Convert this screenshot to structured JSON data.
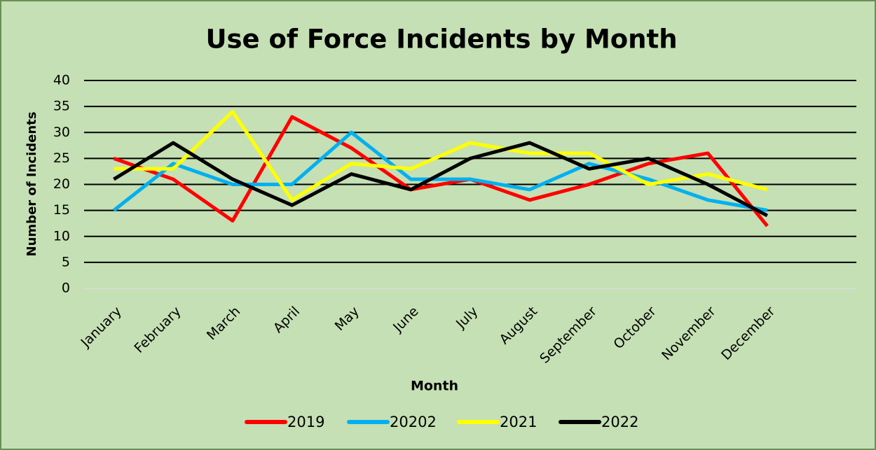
{
  "chart_data": {
    "type": "line",
    "title": "Use of Force Incidents by Month",
    "x_label": "Month",
    "y_label": "Number of Incidents",
    "categories": [
      "January",
      "February",
      "March",
      "April",
      "May",
      "June",
      "July",
      "August",
      "September",
      "October",
      "November",
      "December",
      null
    ],
    "series": [
      {
        "name": "2019",
        "color": "#ff0000",
        "values": [
          25,
          21,
          13,
          33,
          27,
          19,
          21,
          17,
          20,
          24,
          26,
          12,
          null
        ]
      },
      {
        "name": "20202",
        "color": "#00b0f0",
        "values": [
          15,
          24,
          20,
          20,
          30,
          21,
          21,
          19,
          24,
          21,
          17,
          15,
          null
        ]
      },
      {
        "name": "2021",
        "color": "#ffff00",
        "values": [
          23,
          23,
          34,
          17,
          24,
          23,
          28,
          26,
          26,
          20,
          22,
          19,
          null
        ]
      },
      {
        "name": "2022",
        "color": "#000000",
        "values": [
          21,
          28,
          21,
          16,
          22,
          19,
          25,
          28,
          23,
          25,
          20,
          14,
          null
        ]
      }
    ],
    "ylim": [
      0,
      40
    ],
    "yticks": [
      0,
      5,
      10,
      15,
      20,
      25,
      30,
      35,
      40
    ],
    "grid": true,
    "legend": "bottom"
  }
}
